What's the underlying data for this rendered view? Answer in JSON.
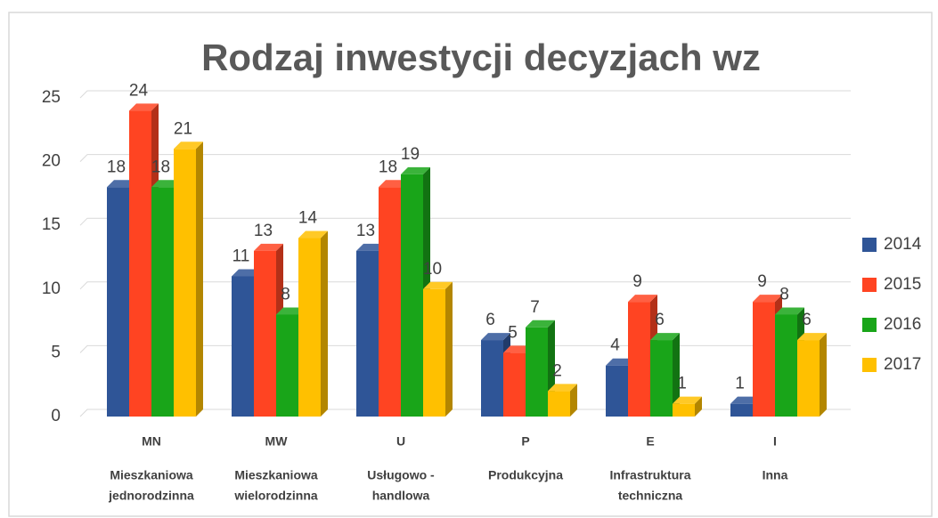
{
  "chart_data": {
    "type": "bar3d",
    "title": "Rodzaj inwestycji  decyzjach wz",
    "categories": [
      "MN",
      "MW",
      "U",
      "P",
      "E",
      "I"
    ],
    "category_labels": [
      [
        "Mieszkaniowa",
        "jednorodzinna"
      ],
      [
        "Mieszkaniowa",
        "wielorodzinna"
      ],
      [
        "Usługowo -",
        "handlowa"
      ],
      [
        "Produkcyjna"
      ],
      [
        "Infrastruktura",
        "techniczna"
      ],
      [
        "Inna"
      ]
    ],
    "series": [
      {
        "name": "2014",
        "color": "#2f5597",
        "values": [
          18,
          11,
          13,
          6,
          4,
          1
        ]
      },
      {
        "name": "2015",
        "color": "#ff4422",
        "values": [
          24,
          13,
          18,
          5,
          9,
          9
        ]
      },
      {
        "name": "2016",
        "color": "#19a519",
        "values": [
          18,
          8,
          19,
          7,
          6,
          8
        ]
      },
      {
        "name": "2017",
        "color": "#ffc000",
        "values": [
          21,
          14,
          10,
          2,
          1,
          6
        ]
      }
    ],
    "ylim": [
      0,
      25
    ],
    "yticks": [
      0,
      5,
      10,
      15,
      20,
      25
    ],
    "grid": true,
    "legend": "right"
  }
}
